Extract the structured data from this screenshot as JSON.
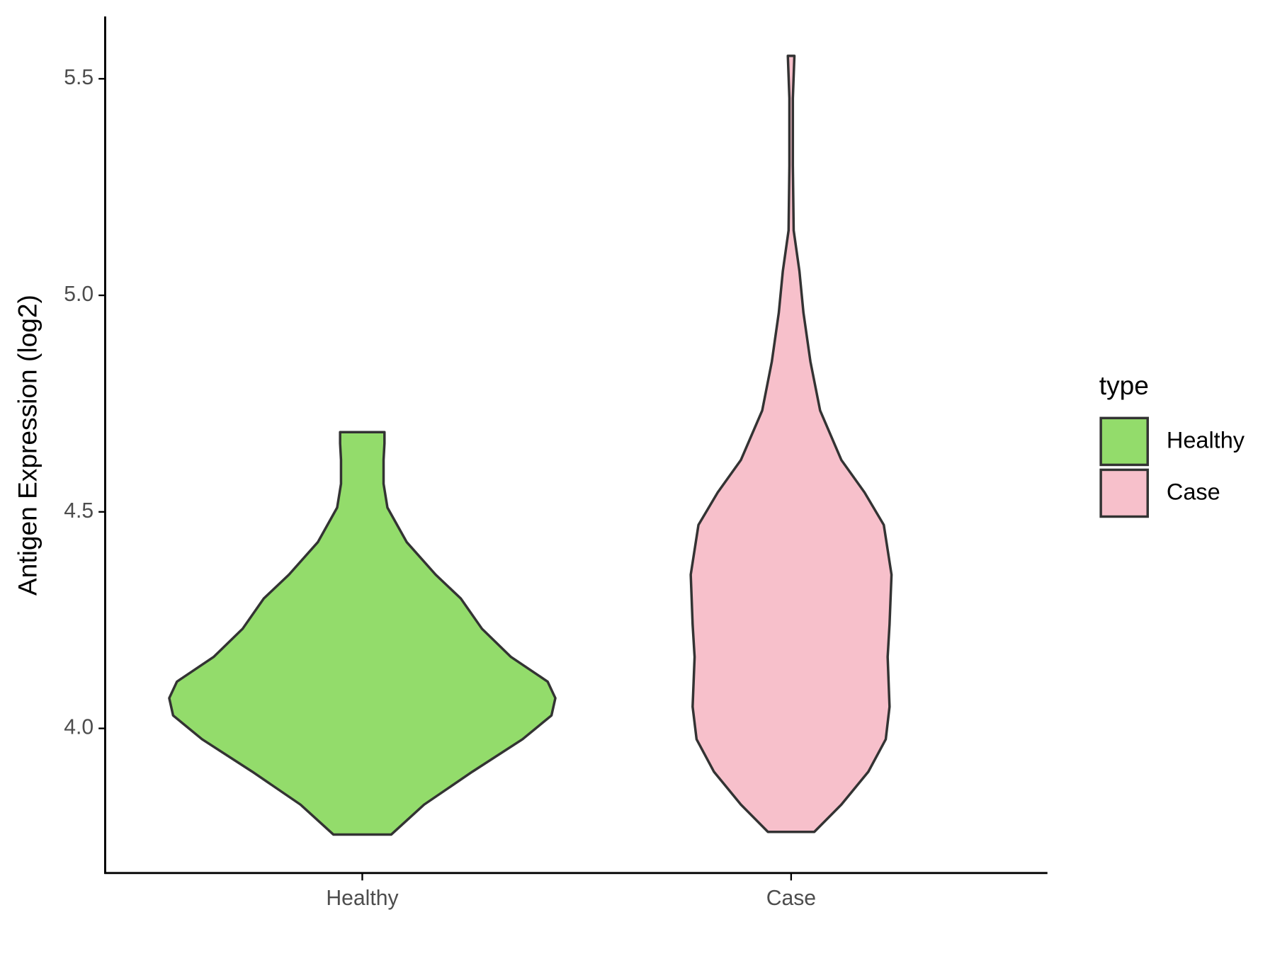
{
  "chart_data": {
    "type": "violin",
    "ylabel": "Antigen Expression (log2)",
    "categories": [
      "Healthy",
      "Case"
    ],
    "ylim": [
      3.666,
      5.644
    ],
    "yticks": [
      {
        "value": 4,
        "label": "4.0"
      },
      4.5,
      {
        "value": 5,
        "label": "5.0"
      },
      5.5
    ],
    "legend_title": "type",
    "legend": "right",
    "violins": [
      {
        "name": "Healthy",
        "color": "#93dc6b",
        "y": [
          3.755,
          3.824,
          3.9,
          3.975,
          4.03,
          4.07,
          4.108,
          4.165,
          4.23,
          4.3,
          4.355,
          4.43,
          4.51,
          4.565,
          4.62,
          4.658,
          4.684
        ],
        "density": [
          0.15,
          0.32,
          0.57,
          0.83,
          0.98,
          1,
          0.96,
          0.77,
          0.62,
          0.51,
          0.38,
          0.23,
          0.13,
          0.11,
          0.11,
          0.115,
          0.115
        ]
      },
      {
        "name": "Case",
        "color": "#f7c0cb",
        "y": [
          3.761,
          3.824,
          3.9,
          3.975,
          4.05,
          4.165,
          4.24,
          4.355,
          4.47,
          4.545,
          4.62,
          4.734,
          4.847,
          4.96,
          5.056,
          5.15,
          5.3,
          5.455,
          5.553
        ],
        "density": [
          0.12,
          0.26,
          0.4,
          0.49,
          0.51,
          0.5,
          0.51,
          0.52,
          0.48,
          0.38,
          0.26,
          0.15,
          0.1,
          0.064,
          0.043,
          0.013,
          0.009,
          0.009,
          0.017
        ]
      }
    ]
  }
}
